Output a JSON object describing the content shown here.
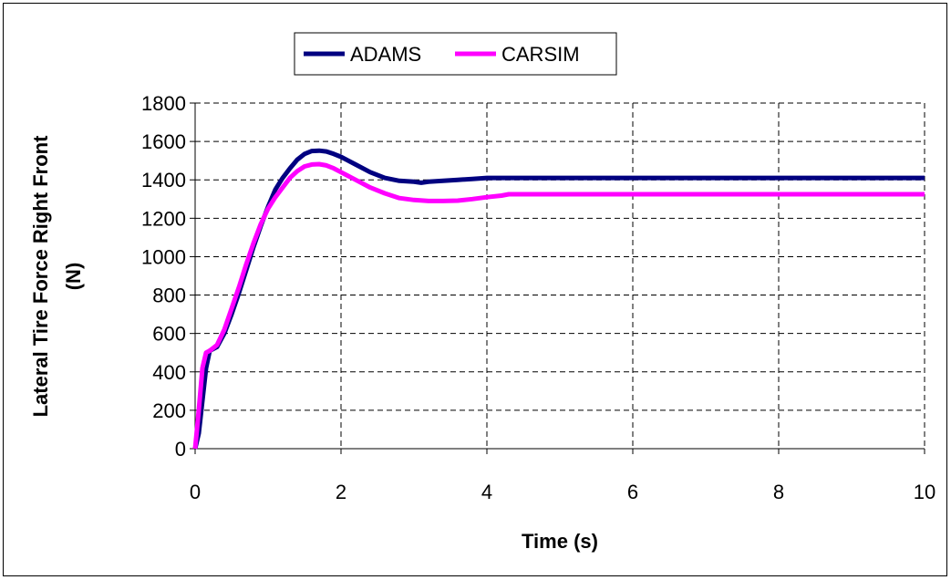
{
  "chart_data": {
    "type": "line",
    "xlabel": "Time (s)",
    "ylabel_lines": [
      "Lateral Tire Force Right Front",
      "(N)"
    ],
    "xlim": [
      0,
      10
    ],
    "ylim": [
      0,
      1800
    ],
    "x_ticks": [
      0,
      2,
      4,
      6,
      8,
      10
    ],
    "y_ticks": [
      0,
      200,
      400,
      600,
      800,
      1000,
      1200,
      1400,
      1600,
      1800
    ],
    "grid": "dashed, both axes",
    "legend_position": "top",
    "series": [
      {
        "name": "ADAMS",
        "color": "#000080",
        "x": [
          0,
          0.05,
          0.1,
          0.15,
          0.2,
          0.3,
          0.4,
          0.5,
          0.6,
          0.7,
          0.8,
          0.9,
          1.0,
          1.1,
          1.2,
          1.3,
          1.4,
          1.5,
          1.6,
          1.7,
          1.8,
          1.9,
          2.0,
          2.2,
          2.4,
          2.6,
          2.8,
          3.0,
          3.1,
          3.2,
          3.4,
          3.6,
          3.8,
          4.0,
          5,
          6,
          7,
          8,
          9,
          10
        ],
        "values": [
          0,
          80,
          250,
          420,
          510,
          530,
          600,
          700,
          810,
          930,
          1050,
          1160,
          1260,
          1350,
          1410,
          1460,
          1505,
          1535,
          1550,
          1552,
          1548,
          1535,
          1520,
          1480,
          1440,
          1410,
          1395,
          1390,
          1385,
          1390,
          1395,
          1400,
          1405,
          1410,
          1410,
          1410,
          1410,
          1410,
          1410,
          1410
        ]
      },
      {
        "name": "CARSIM",
        "color": "#FF00FF",
        "x": [
          0,
          0.05,
          0.1,
          0.15,
          0.2,
          0.3,
          0.4,
          0.5,
          0.6,
          0.7,
          0.8,
          0.9,
          1.0,
          1.1,
          1.2,
          1.3,
          1.4,
          1.5,
          1.6,
          1.7,
          1.8,
          1.9,
          2.0,
          2.2,
          2.4,
          2.6,
          2.8,
          3.0,
          3.2,
          3.4,
          3.6,
          3.8,
          4.0,
          4.2,
          4.3,
          5,
          6,
          7,
          8,
          9,
          10
        ],
        "values": [
          0,
          200,
          420,
          500,
          510,
          540,
          620,
          730,
          840,
          960,
          1070,
          1170,
          1250,
          1310,
          1360,
          1410,
          1445,
          1470,
          1480,
          1482,
          1475,
          1460,
          1440,
          1400,
          1360,
          1330,
          1305,
          1295,
          1290,
          1290,
          1292,
          1300,
          1310,
          1318,
          1325,
          1325,
          1325,
          1325,
          1325,
          1325,
          1325
        ]
      }
    ]
  }
}
